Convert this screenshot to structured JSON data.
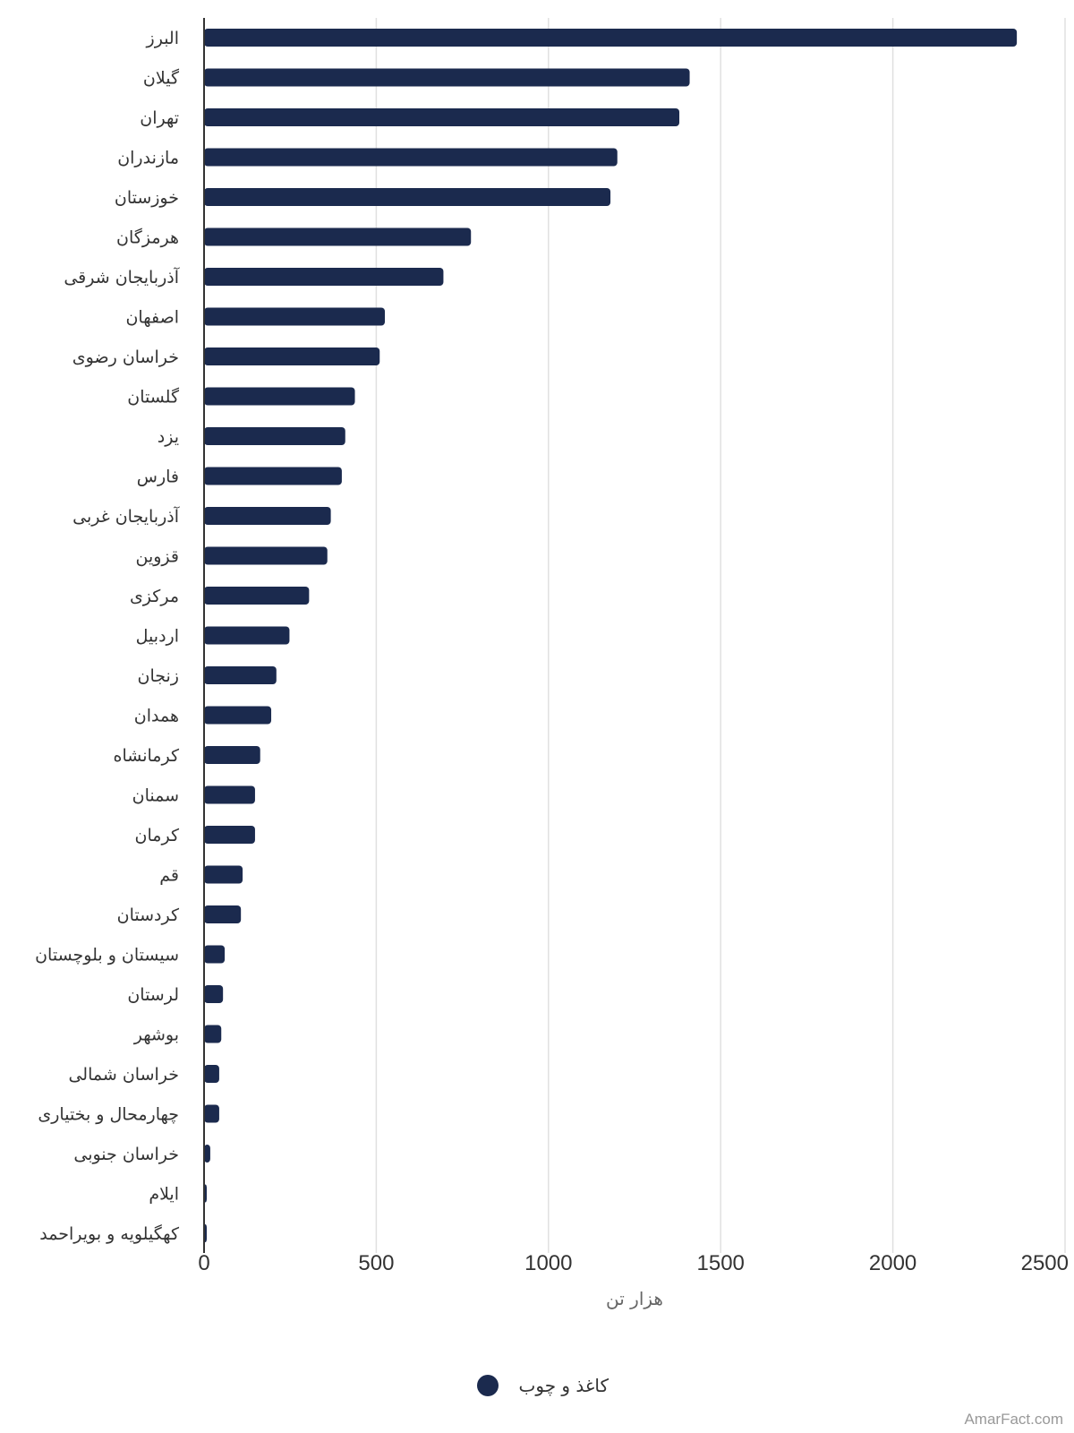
{
  "chart_data": {
    "type": "bar",
    "orientation": "horizontal",
    "categories": [
      "البرز",
      "گیلان",
      "تهران",
      "مازندران",
      "خوزستان",
      "هرمزگان",
      "آذربایجان شرقی",
      "اصفهان",
      "خراسان رضوی",
      "گلستان",
      "یزد",
      "فارس",
      "آذربایجان غربی",
      "قزوین",
      "مرکزی",
      "اردبیل",
      "زنجان",
      "همدان",
      "کرمانشاه",
      "سمنان",
      "کرمان",
      "قم",
      "کردستان",
      "سیستان و بلوچستان",
      "لرستان",
      "بوشهر",
      "خراسان شمالی",
      "چهارمحال و بختیاری",
      "خراسان جنوبی",
      "ایلام",
      "کهگیلویه و بویراحمد"
    ],
    "series": [
      {
        "name": "کاغذ و چوب",
        "color": "#1b2a4e",
        "values": [
          2360,
          1410,
          1380,
          1200,
          1180,
          775,
          695,
          525,
          510,
          438,
          410,
          400,
          368,
          358,
          305,
          248,
          210,
          195,
          163,
          148,
          148,
          112,
          107,
          60,
          55,
          50,
          44,
          44,
          18,
          6,
          6
        ]
      }
    ],
    "xlabel": "هزار تن",
    "xlim": [
      0,
      2500
    ],
    "xticks": [
      0,
      500,
      1000,
      1500,
      2000,
      2500
    ],
    "grid": true,
    "legend_position": "bottom"
  },
  "credit": "AmarFact.com"
}
